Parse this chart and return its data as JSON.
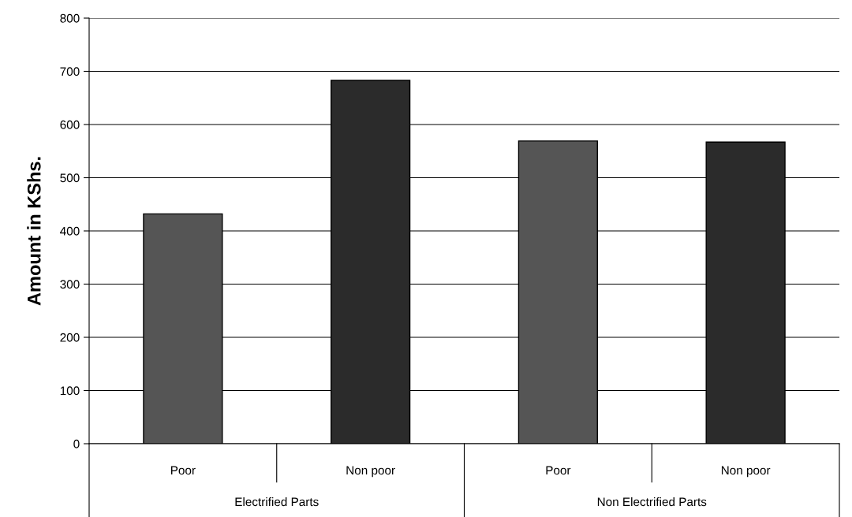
{
  "chart_data": {
    "type": "bar",
    "ylabel": "Amount in KShs.",
    "categories": [
      "Poor",
      "Non poor",
      "Poor",
      "Non poor"
    ],
    "values": [
      432,
      683,
      569,
      567
    ],
    "colors": [
      "#555555",
      "#2b2b2b",
      "#555555",
      "#2b2b2b"
    ],
    "ylim": [
      0,
      800
    ],
    "yticks": [
      0,
      100,
      200,
      300,
      400,
      500,
      600,
      700,
      800
    ],
    "grid": "y",
    "legend": false,
    "annotations": [
      "Electrified Parts",
      "Non Electrified Parts"
    ]
  }
}
